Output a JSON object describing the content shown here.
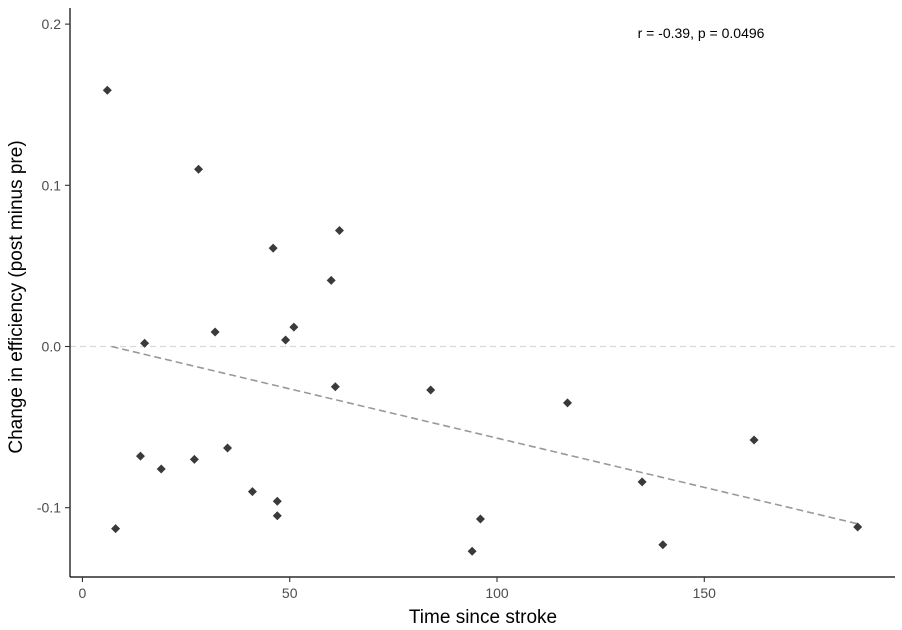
{
  "chart_data": {
    "type": "scatter",
    "xlabel": "Time since stroke",
    "ylabel": "Change in efficiency (post minus pre)",
    "xlim": [
      -3,
      196
    ],
    "ylim": [
      -0.143,
      0.21
    ],
    "x_ticks": [
      0,
      50,
      100,
      150
    ],
    "y_ticks": [
      -0.1,
      0.0,
      0.1,
      0.2
    ],
    "x_tick_labels": [
      "0",
      "50",
      "100",
      "150"
    ],
    "y_tick_labels": [
      "-0.1",
      "0.0",
      "0.1",
      "0.2"
    ],
    "annotation": "r = -0.39, p = 0.0496",
    "grid": false,
    "reference_line": {
      "y": 0.0,
      "style": "dashed",
      "color": "#d9d9d9"
    },
    "fit_line": {
      "x": [
        7,
        187
      ],
      "y": [
        0.0,
        -0.11
      ],
      "style": "dashed",
      "color": "#999999"
    },
    "colors": {
      "points": "#3a3a3a",
      "axis": "#000000"
    },
    "points": [
      {
        "x": 6,
        "y": 0.159
      },
      {
        "x": 8,
        "y": -0.113
      },
      {
        "x": 14,
        "y": -0.068
      },
      {
        "x": 15,
        "y": 0.002
      },
      {
        "x": 19,
        "y": -0.076
      },
      {
        "x": 27,
        "y": -0.07
      },
      {
        "x": 28,
        "y": 0.11
      },
      {
        "x": 32,
        "y": 0.009
      },
      {
        "x": 35,
        "y": -0.063
      },
      {
        "x": 41,
        "y": -0.09
      },
      {
        "x": 46,
        "y": 0.061
      },
      {
        "x": 47,
        "y": -0.096
      },
      {
        "x": 47,
        "y": -0.105
      },
      {
        "x": 49,
        "y": 0.004
      },
      {
        "x": 51,
        "y": 0.012
      },
      {
        "x": 60,
        "y": 0.041
      },
      {
        "x": 61,
        "y": -0.025
      },
      {
        "x": 62,
        "y": 0.072
      },
      {
        "x": 84,
        "y": -0.027
      },
      {
        "x": 94,
        "y": -0.127
      },
      {
        "x": 96,
        "y": -0.107
      },
      {
        "x": 117,
        "y": -0.035
      },
      {
        "x": 135,
        "y": -0.084
      },
      {
        "x": 140,
        "y": -0.123
      },
      {
        "x": 162,
        "y": -0.058
      },
      {
        "x": 187,
        "y": -0.112
      }
    ]
  }
}
